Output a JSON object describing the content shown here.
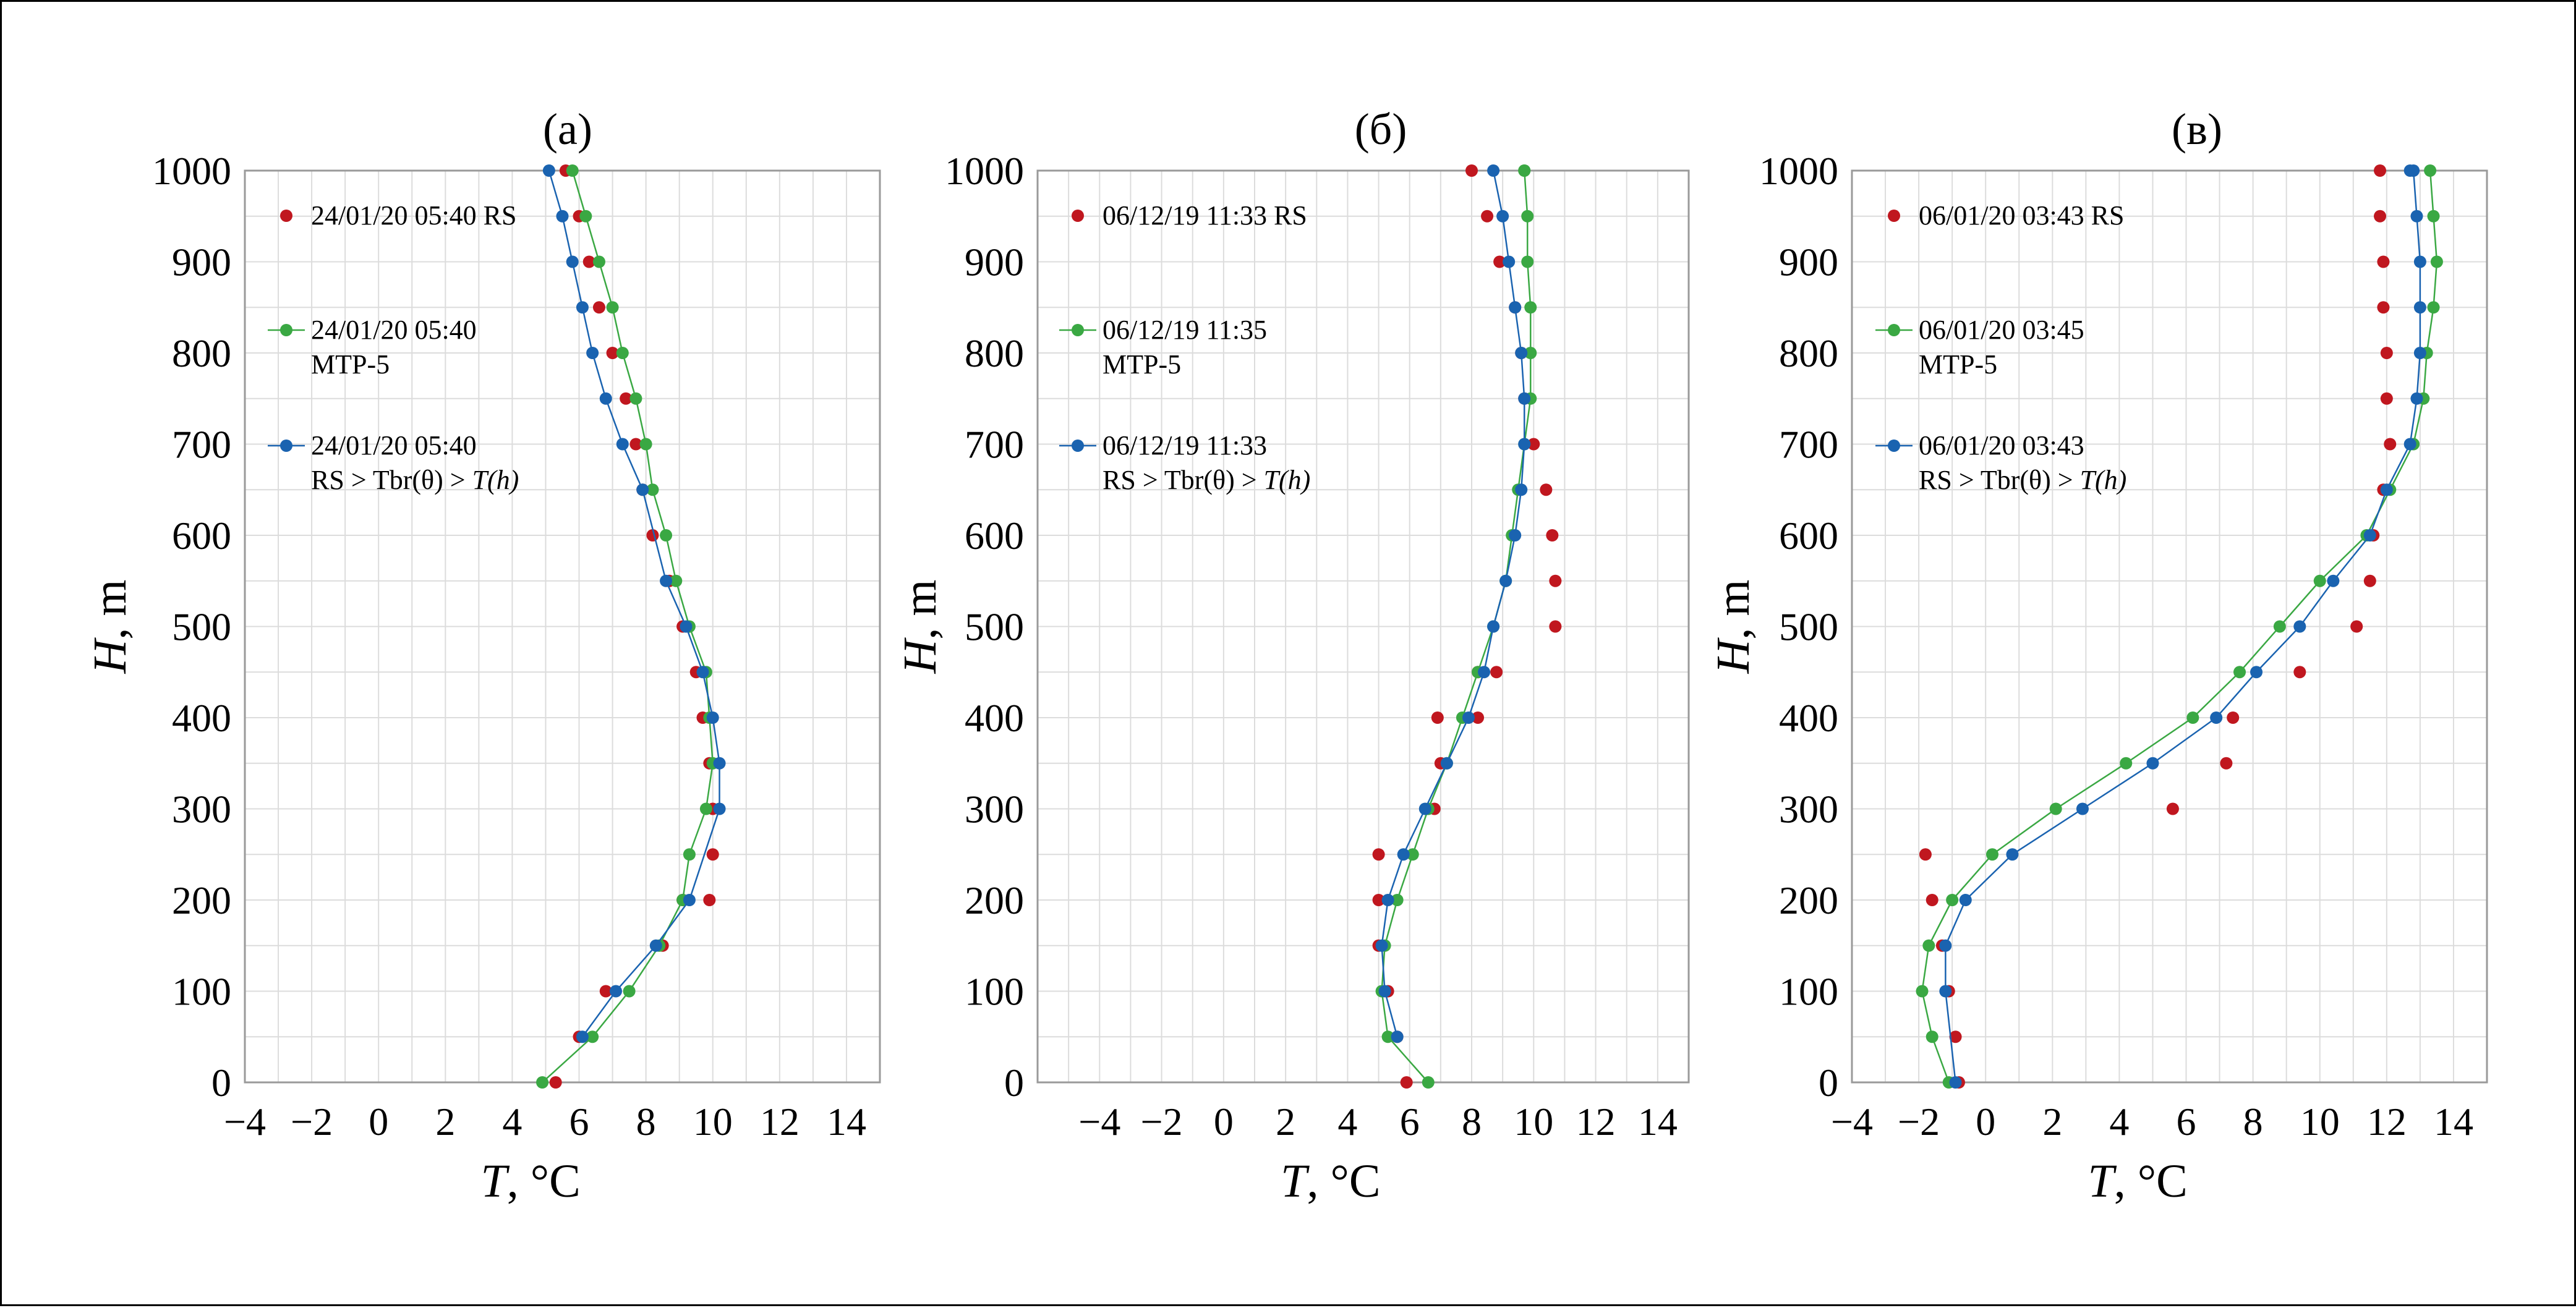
{
  "colors": {
    "RS": "#c0171f",
    "MTP5": "#3aa843",
    "RSTbr": "#1a63b0",
    "grid": "#dcdcdc"
  },
  "chart_data": [
    {
      "type": "line",
      "title": "(а)",
      "xlabel_italic": "T",
      "xlabel_rest": ", °C",
      "ylabel_italic": "H",
      "ylabel_rest": ", m",
      "xlim": [
        -4,
        15
      ],
      "ylim": [
        0,
        1000
      ],
      "xticks": [
        -4,
        -2,
        0,
        2,
        4,
        6,
        8,
        10,
        12,
        14
      ],
      "yticks": [
        0,
        100,
        200,
        300,
        400,
        500,
        600,
        700,
        800,
        900,
        1000
      ],
      "xtick_labels": [
        "−4",
        "−2",
        "0",
        "2",
        "4",
        "6",
        "8",
        "10",
        "12",
        "14"
      ],
      "ytick_labels": [
        "0",
        "100",
        "200",
        "300",
        "400",
        "500",
        "600",
        "700",
        "800",
        "900",
        "1000"
      ],
      "legend": [
        {
          "key": "RS",
          "lines": [
            "24/01/20 05:40  RS"
          ]
        },
        {
          "key": "MTP5",
          "lines": [
            "24/01/20 05:40",
            "MTP-5"
          ]
        },
        {
          "key": "RSTbr",
          "lines": [
            "24/01/20 05:40",
            "RS > Tbr(θ) > "
          ],
          "italic_tail": "T(h)"
        }
      ],
      "series": [
        {
          "key": "RS",
          "style": "markers",
          "x": [
            5.3,
            6.0,
            6.8,
            8.5,
            9.1,
            9.9,
            10.0,
            10.0,
            9.9,
            9.7,
            9.5,
            9.1,
            8.7,
            8.2,
            7.9,
            7.7,
            7.4,
            7.0,
            6.6,
            6.3,
            6.0,
            5.6
          ],
          "y": [
            0,
            50,
            100,
            150,
            200,
            200,
            250,
            300,
            350,
            400,
            450,
            500,
            550,
            600,
            650,
            700,
            750,
            800,
            850,
            900,
            950,
            1000
          ]
        },
        {
          "key": "MTP5",
          "style": "line",
          "x": [
            4.9,
            6.4,
            7.5,
            8.4,
            9.1,
            9.3,
            9.8,
            10.0,
            9.9,
            9.8,
            9.3,
            8.9,
            8.6,
            8.2,
            8.0,
            7.7,
            7.3,
            7.0,
            6.6,
            6.2,
            5.8
          ],
          "y": [
            0,
            50,
            100,
            150,
            200,
            250,
            300,
            350,
            400,
            450,
            500,
            550,
            600,
            650,
            700,
            750,
            800,
            850,
            900,
            950,
            1000
          ]
        },
        {
          "key": "RSTbr",
          "style": "line",
          "x": [
            6.1,
            7.1,
            8.3,
            9.3,
            10.2,
            10.2,
            10.0,
            9.7,
            9.2,
            8.6,
            7.9,
            7.3,
            6.8,
            6.4,
            6.1,
            5.8,
            5.5,
            5.1
          ],
          "y": [
            50,
            100,
            150,
            200,
            300,
            350,
            400,
            450,
            500,
            550,
            650,
            700,
            750,
            800,
            850,
            900,
            950,
            1000
          ]
        }
      ]
    },
    {
      "type": "line",
      "title": "(б)",
      "xlabel_italic": "T",
      "xlabel_rest": ", °C",
      "ylabel_italic": "H",
      "ylabel_rest": ", m",
      "xlim": [
        -6,
        15
      ],
      "ylim": [
        0,
        1000
      ],
      "xticks": [
        -4,
        -2,
        0,
        2,
        4,
        6,
        8,
        10,
        12,
        14
      ],
      "yticks": [
        0,
        100,
        200,
        300,
        400,
        500,
        600,
        700,
        800,
        900,
        1000
      ],
      "xtick_labels": [
        "−4",
        "−2",
        "0",
        "2",
        "4",
        "6",
        "8",
        "10",
        "12",
        "14"
      ],
      "ytick_labels": [
        "0",
        "100",
        "200",
        "300",
        "400",
        "500",
        "600",
        "700",
        "800",
        "900",
        "1000"
      ],
      "legend": [
        {
          "key": "RS",
          "lines": [
            "06/12/19 11:33 RS"
          ]
        },
        {
          "key": "MTP5",
          "lines": [
            "06/12/19 11:35",
            "MTP-5"
          ]
        },
        {
          "key": "RSTbr",
          "lines": [
            "06/12/19 11:33",
            "RS > Tbr(θ) > "
          ],
          "italic_tail": "T(h)"
        }
      ],
      "series": [
        {
          "key": "RS",
          "style": "markers",
          "x": [
            5.9,
            5.6,
            5.3,
            5.0,
            5.0,
            5.0,
            6.8,
            7.0,
            8.2,
            8.8,
            6.9,
            8.2,
            10.7,
            10.7,
            10.6,
            10.4,
            10.0,
            9.7,
            9.6,
            9.4,
            8.9,
            8.5,
            8.0
          ],
          "y": [
            0,
            50,
            100,
            150,
            200,
            250,
            300,
            350,
            400,
            450,
            400,
            450,
            500,
            550,
            600,
            650,
            700,
            750,
            800,
            850,
            900,
            950,
            1000
          ]
        },
        {
          "key": "MTP5",
          "style": "line",
          "x": [
            6.6,
            5.3,
            5.1,
            5.2,
            5.6,
            6.1,
            6.6,
            7.2,
            7.7,
            8.2,
            8.7,
            9.1,
            9.3,
            9.5,
            9.7,
            9.9,
            9.9,
            9.9,
            9.8,
            9.8,
            9.7,
            9.7
          ],
          "y": [
            0,
            50,
            100,
            150,
            200,
            250,
            300,
            350,
            400,
            450,
            500,
            550,
            600,
            650,
            700,
            750,
            800,
            850,
            900,
            950,
            1000,
            1000
          ]
        },
        {
          "key": "RSTbr",
          "style": "line",
          "x": [
            5.6,
            5.2,
            5.1,
            5.3,
            5.8,
            6.5,
            7.2,
            7.9,
            8.4,
            8.7,
            9.1,
            9.4,
            9.6,
            9.7,
            9.7,
            9.6,
            9.4,
            9.2,
            9.0,
            8.7
          ],
          "y": [
            50,
            100,
            150,
            200,
            250,
            300,
            350,
            400,
            450,
            500,
            550,
            600,
            650,
            700,
            750,
            800,
            850,
            900,
            950,
            1000
          ]
        }
      ]
    },
    {
      "type": "line",
      "title": "(в)",
      "xlabel_italic": "T",
      "xlabel_rest": ", °C",
      "ylabel_italic": "H",
      "ylabel_rest": ", m",
      "xlim": [
        -4,
        15
      ],
      "ylim": [
        0,
        1000
      ],
      "xticks": [
        -4,
        -2,
        0,
        2,
        4,
        6,
        8,
        10,
        12,
        14
      ],
      "yticks": [
        0,
        100,
        200,
        300,
        400,
        500,
        600,
        700,
        800,
        900,
        1000
      ],
      "xtick_labels": [
        "−4",
        "−2",
        "0",
        "2",
        "4",
        "6",
        "8",
        "10",
        "12",
        "14"
      ],
      "ytick_labels": [
        "0",
        "100",
        "200",
        "300",
        "400",
        "500",
        "600",
        "700",
        "800",
        "900",
        "1000"
      ],
      "legend": [
        {
          "key": "RS",
          "lines": [
            "06/01/20 03:43 RS"
          ]
        },
        {
          "key": "MTP5",
          "lines": [
            "06/01/20 03:45",
            "MTP-5"
          ]
        },
        {
          "key": "RSTbr",
          "lines": [
            "06/01/20 03:43",
            "RS > Tbr(θ) > "
          ],
          "italic_tail": "T(h)"
        }
      ],
      "series": [
        {
          "key": "RS",
          "style": "markers",
          "x": [
            -0.8,
            -0.9,
            -1.1,
            -1.3,
            -1.6,
            -1.8,
            5.6,
            7.2,
            7.4,
            9.4,
            11.1,
            11.5,
            11.6,
            11.9,
            12.1,
            12.0,
            12.0,
            11.9,
            11.9,
            11.8,
            11.8
          ],
          "y": [
            0,
            50,
            100,
            150,
            200,
            250,
            300,
            350,
            400,
            450,
            500,
            550,
            600,
            650,
            700,
            750,
            800,
            850,
            900,
            950,
            1000
          ]
        },
        {
          "key": "MTP5",
          "style": "line",
          "x": [
            -1.1,
            -1.6,
            -1.9,
            -1.7,
            -1.0,
            0.2,
            2.1,
            4.2,
            6.2,
            7.6,
            8.8,
            10.0,
            11.4,
            12.1,
            12.8,
            13.1,
            13.2,
            13.4,
            13.5,
            13.4,
            13.3
          ],
          "y": [
            0,
            50,
            100,
            150,
            200,
            250,
            300,
            350,
            400,
            450,
            500,
            550,
            600,
            650,
            700,
            750,
            800,
            850,
            900,
            950,
            1000
          ]
        },
        {
          "key": "RSTbr",
          "style": "line",
          "x": [
            -0.9,
            -1.2,
            -1.2,
            -0.6,
            0.8,
            2.9,
            5.0,
            6.9,
            8.1,
            9.4,
            10.4,
            11.5,
            12.0,
            12.7,
            12.9,
            13.0,
            13.0,
            13.0,
            12.9,
            12.8,
            12.7
          ],
          "y": [
            0,
            100,
            150,
            200,
            250,
            300,
            350,
            400,
            450,
            500,
            550,
            600,
            650,
            700,
            750,
            800,
            850,
            900,
            950,
            1000,
            1000
          ]
        }
      ]
    }
  ]
}
